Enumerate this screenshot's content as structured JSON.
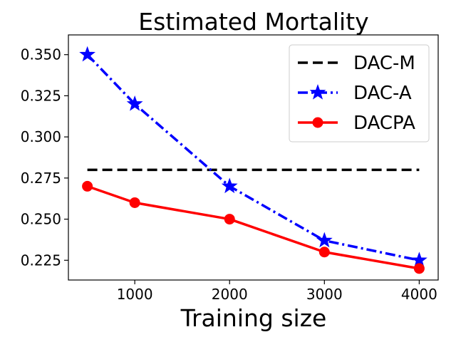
{
  "chart_data": {
    "type": "line",
    "title": "Estimated Mortality",
    "xlabel": "Training size",
    "ylabel": "",
    "x": [
      500,
      1000,
      2000,
      3000,
      4000
    ],
    "xlim": [
      300,
      4200
    ],
    "ylim": [
      0.213,
      0.362
    ],
    "xticks": [
      1000,
      2000,
      3000,
      4000
    ],
    "xtick_labels": [
      "1000",
      "2000",
      "3000",
      "4000"
    ],
    "yticks": [
      0.225,
      0.25,
      0.275,
      0.3,
      0.325,
      0.35
    ],
    "ytick_labels": [
      "0.225",
      "0.250",
      "0.275",
      "0.300",
      "0.325",
      "0.350"
    ],
    "grid": false,
    "legend_position": "top-right",
    "series": [
      {
        "name": "DAC-M",
        "values": [
          0.28,
          0.28,
          0.28,
          0.28,
          0.28
        ],
        "color": "#000000",
        "style": "dashed",
        "marker": "none"
      },
      {
        "name": "DAC-A",
        "values": [
          0.35,
          0.32,
          0.27,
          0.237,
          0.225
        ],
        "color": "#0000ff",
        "style": "dashdot",
        "marker": "star"
      },
      {
        "name": "DACPA",
        "values": [
          0.27,
          0.26,
          0.25,
          0.23,
          0.22
        ],
        "color": "#ff0000",
        "style": "solid",
        "marker": "circle"
      }
    ]
  }
}
